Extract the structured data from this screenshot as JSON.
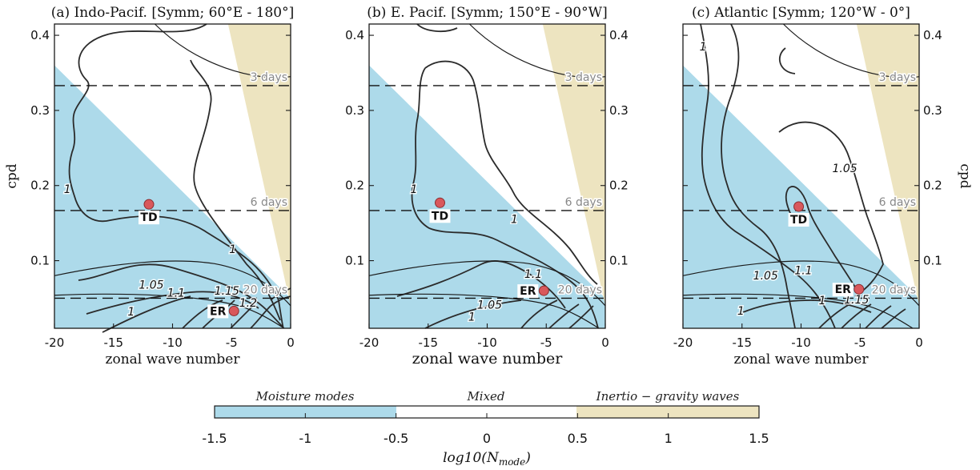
{
  "colors": {
    "moisture": "#addaea",
    "mixed": "#ffffff",
    "igw": "#ede4c0",
    "point": "#d9585c",
    "contour": "#2b2b2b"
  },
  "colorbar": {
    "label": "log10(N_mode)",
    "label_base": "log10(N",
    "label_sub": "mode",
    "label_close": ")",
    "regions": [
      "Moisture modes",
      "Mixed",
      "Inertio − gravity waves"
    ],
    "ticks": [
      "-1.5",
      "-1",
      "-0.5",
      "0",
      "0.5",
      "1",
      "1.5"
    ],
    "range": [
      -1.5,
      1.5
    ]
  },
  "chart_data": [
    {
      "type": "contour",
      "title": "(a) Indo-Pacif. [Symm; 60°E - 180°]",
      "xlabel": "zonal wave number",
      "ylabel": "cpd",
      "xlim": [
        -20,
        0
      ],
      "ylim": [
        0.01,
        0.415
      ],
      "xticks": [
        "-20",
        "-15",
        "-10",
        "-5",
        "0"
      ],
      "yticks": [
        "0.1",
        "0.2",
        "0.3",
        "0.4"
      ],
      "period_lines": [
        {
          "label": "3 days",
          "freq": 0.333
        },
        {
          "label": "6 days",
          "freq": 0.1667
        },
        {
          "label": "20 days",
          "freq": 0.05
        }
      ],
      "points": [
        {
          "label": "TD",
          "x": -12,
          "y": 0.175
        },
        {
          "label": "ER",
          "x": -4.8,
          "y": 0.033
        }
      ],
      "contour_labels": [
        {
          "text": "1",
          "x": -18.9,
          "y": 0.19
        },
        {
          "text": "1",
          "x": -4.9,
          "y": 0.11
        },
        {
          "text": "1.05",
          "x": -11.8,
          "y": 0.063
        },
        {
          "text": "1.1",
          "x": -9.7,
          "y": 0.052
        },
        {
          "text": "1.15",
          "x": -5.4,
          "y": 0.055
        },
        {
          "text": "1.2",
          "x": -3.6,
          "y": 0.039
        },
        {
          "text": "1",
          "x": -13.5,
          "y": 0.027
        }
      ]
    },
    {
      "type": "contour",
      "title": "(b) E. Pacif. [Symm; 150°E - 90°W]",
      "xlabel": "zonal wave number",
      "ylabel": "cpd",
      "xlim": [
        -20,
        0
      ],
      "ylim": [
        0.01,
        0.415
      ],
      "xticks": [
        "-20",
        "-15",
        "-10",
        "-5",
        "0"
      ],
      "yticks": [
        "0.1",
        "0.2",
        "0.3",
        "0.4"
      ],
      "period_lines": [
        {
          "label": "3 days",
          "freq": 0.333
        },
        {
          "label": "6 days",
          "freq": 0.1667
        },
        {
          "label": "20 days",
          "freq": 0.05
        }
      ],
      "points": [
        {
          "label": "TD",
          "x": -14,
          "y": 0.177
        },
        {
          "label": "ER",
          "x": -5.2,
          "y": 0.06
        }
      ],
      "contour_labels": [
        {
          "text": "1",
          "x": -16.2,
          "y": 0.19
        },
        {
          "text": "1",
          "x": -7.7,
          "y": 0.15
        },
        {
          "text": "1.1",
          "x": -6.1,
          "y": 0.077
        },
        {
          "text": "1.05",
          "x": -9.8,
          "y": 0.036
        },
        {
          "text": "1",
          "x": -11.3,
          "y": 0.02
        }
      ]
    },
    {
      "type": "contour",
      "title": "(c) Atlantic [Symm; 120°W - 0°]",
      "xlabel": "zonal wave number",
      "ylabel": "cpd",
      "xlim": [
        -20,
        0
      ],
      "ylim": [
        0.01,
        0.415
      ],
      "xticks": [
        "-20",
        "-15",
        "-10",
        "-5",
        "0"
      ],
      "yticks": [
        "0.1",
        "0.2",
        "0.3",
        "0.4"
      ],
      "period_lines": [
        {
          "label": "3 days",
          "freq": 0.333
        },
        {
          "label": "6 days",
          "freq": 0.1667
        },
        {
          "label": "20 days",
          "freq": 0.05
        }
      ],
      "points": [
        {
          "label": "TD",
          "x": -10.2,
          "y": 0.172
        },
        {
          "label": "ER",
          "x": -5.1,
          "y": 0.062
        }
      ],
      "contour_labels": [
        {
          "text": "1",
          "x": -18.3,
          "y": 0.38
        },
        {
          "text": "1.05",
          "x": -6.3,
          "y": 0.218
        },
        {
          "text": "1.05",
          "x": -13.0,
          "y": 0.075
        },
        {
          "text": "1.1",
          "x": -9.8,
          "y": 0.082
        },
        {
          "text": "1",
          "x": -15.1,
          "y": 0.028
        },
        {
          "text": "1.15",
          "x": -5.3,
          "y": 0.043
        },
        {
          "text": "1",
          "x": -8.2,
          "y": 0.042
        }
      ]
    }
  ]
}
